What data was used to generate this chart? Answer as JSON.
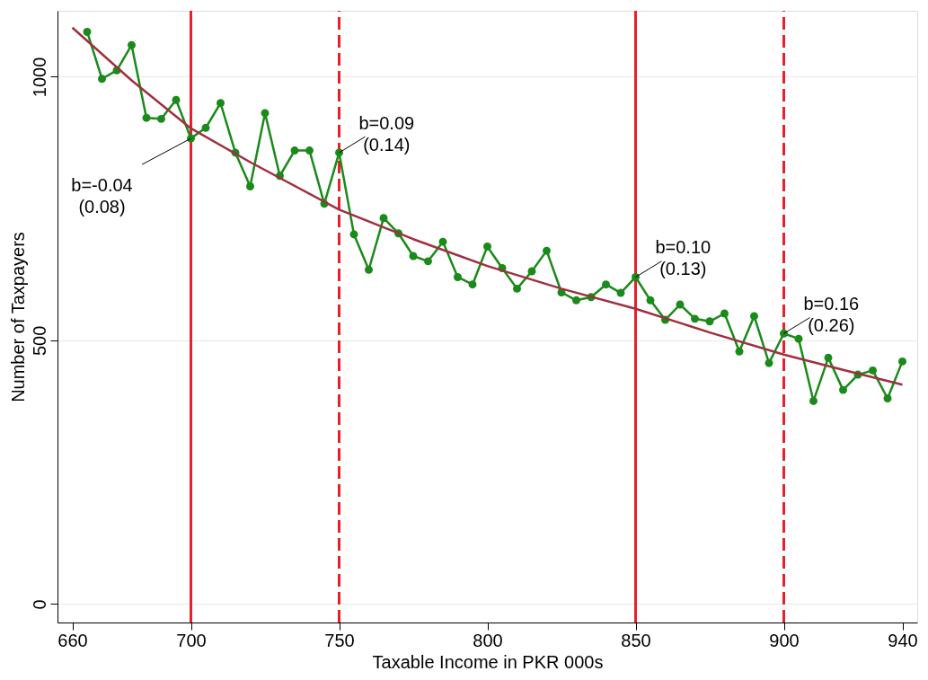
{
  "chart_data": {
    "type": "line",
    "xlabel": "Taxable Income in PKR 000s",
    "ylabel": "Number of Taxpayers",
    "xlim": [
      655,
      945
    ],
    "xticks": [
      660,
      700,
      750,
      800,
      850,
      900,
      940
    ],
    "ylim": [
      -35,
      1125
    ],
    "yticks": [
      0,
      500,
      1000
    ],
    "grid": "y",
    "series": [
      {
        "color": "#1a8a1a",
        "marker": "circle",
        "x": [
          665,
          670,
          675,
          680,
          685,
          690,
          695,
          700,
          705,
          710,
          715,
          720,
          725,
          730,
          735,
          740,
          745,
          750,
          755,
          760,
          765,
          770,
          775,
          780,
          785,
          790,
          795,
          800,
          805,
          810,
          815,
          820,
          825,
          830,
          835,
          840,
          845,
          850,
          855,
          860,
          865,
          870,
          875,
          880,
          885,
          890,
          895,
          900,
          905,
          910,
          915,
          920,
          925,
          930,
          935,
          940
        ],
        "values": [
          1085,
          996,
          1012,
          1060,
          922,
          920,
          956,
          883,
          903,
          950,
          856,
          792,
          931,
          812,
          860,
          860,
          759,
          856,
          701,
          634,
          732,
          703,
          660,
          650,
          687,
          620,
          606,
          678,
          637,
          598,
          631,
          670,
          591,
          576,
          582,
          606,
          590,
          620,
          576,
          539,
          568,
          541,
          536,
          551,
          479,
          546,
          457,
          513,
          503,
          385,
          467,
          406,
          435,
          443,
          390,
          460
        ]
      },
      {
        "type": "line",
        "color": "#a03040",
        "marker": "none",
        "x": [
          660,
          680,
          700,
          720,
          750,
          775,
          800,
          825,
          850,
          875,
          900,
          920,
          940
        ],
        "values": [
          1093,
          993,
          902,
          838,
          748,
          692,
          641,
          598,
          560,
          515,
          473,
          444,
          416
        ]
      }
    ],
    "ref_lines": [
      {
        "axis": "x",
        "value": 700,
        "color": "#e82028",
        "line_style": "solid"
      },
      {
        "axis": "x",
        "value": 750,
        "color": "#e82028",
        "line_style": "dashed"
      },
      {
        "axis": "x",
        "value": 850,
        "color": "#e82028",
        "line_style": "solid"
      },
      {
        "axis": "x",
        "value": 900,
        "color": "#e82028",
        "line_style": "dashed"
      }
    ],
    "annotations": [
      {
        "text": "b=-0.04\n(0.08)",
        "x": 700,
        "y": 883
      },
      {
        "text": "b=0.09\n(0.14)",
        "x": 750,
        "y": 856
      },
      {
        "text": "b=0.10\n(0.13)",
        "x": 850,
        "y": 620
      },
      {
        "text": "b=0.16\n(0.26)",
        "x": 900,
        "y": 513
      }
    ]
  }
}
